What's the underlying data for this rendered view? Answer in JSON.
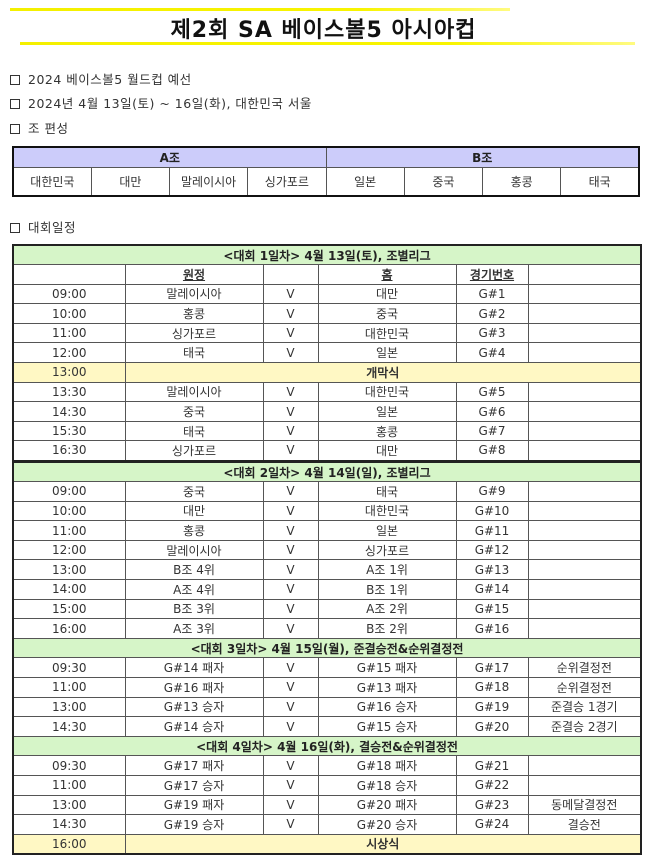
{
  "title": "제2회 SA 베이스볼5 아시아컵",
  "bullets": [
    "2024 베이스볼5 월드컵 예선",
    "2024년 4월 13일(토) ~ 16일(화), 대한민국 서울",
    "조 편성",
    "대회일정"
  ],
  "groups": {
    "a_label": "A조",
    "b_label": "B조",
    "a_teams": [
      "대한민국",
      "대만",
      "말레이시아",
      "싱가포르"
    ],
    "b_teams": [
      "일본",
      "중국",
      "홍콩",
      "태국"
    ]
  },
  "columns": {
    "away": "원정",
    "home": "홈",
    "game_no": "경기번호"
  },
  "days": [
    {
      "header": "<대회 1일차> 4월 13일(토), 조별리그",
      "rows": [
        [
          "09:00",
          "말레이시아",
          "V",
          "대만",
          "G#1",
          ""
        ],
        [
          "10:00",
          "홍콩",
          "V",
          "중국",
          "G#2",
          ""
        ],
        [
          "11:00",
          "싱가포르",
          "V",
          "대한민국",
          "G#3",
          ""
        ],
        [
          "12:00",
          "태국",
          "V",
          "일본",
          "G#4",
          ""
        ],
        {
          "time": "13:00",
          "event": "개막식"
        },
        [
          "13:30",
          "말레이시아",
          "V",
          "대한민국",
          "G#5",
          ""
        ],
        [
          "14:30",
          "중국",
          "V",
          "일본",
          "G#6",
          ""
        ],
        [
          "15:30",
          "태국",
          "V",
          "홍콩",
          "G#7",
          ""
        ],
        [
          "16:30",
          "싱가포르",
          "V",
          "대만",
          "G#8",
          ""
        ]
      ]
    },
    {
      "header": "<대회 2일차> 4월 14일(일), 조별리그",
      "rows": [
        [
          "09:00",
          "중국",
          "V",
          "태국",
          "G#9",
          ""
        ],
        [
          "10:00",
          "대만",
          "V",
          "대한민국",
          "G#10",
          ""
        ],
        [
          "11:00",
          "홍콩",
          "V",
          "일본",
          "G#11",
          ""
        ],
        [
          "12:00",
          "말레이시아",
          "V",
          "싱가포르",
          "G#12",
          ""
        ],
        [
          "13:00",
          "B조 4위",
          "V",
          "A조 1위",
          "G#13",
          ""
        ],
        [
          "14:00",
          "A조 4위",
          "V",
          "B조 1위",
          "G#14",
          ""
        ],
        [
          "15:00",
          "B조 3위",
          "V",
          "A조 2위",
          "G#15",
          ""
        ],
        [
          "16:00",
          "A조 3위",
          "V",
          "B조 2위",
          "G#16",
          ""
        ]
      ]
    },
    {
      "header": "<대회 3일차> 4월 15일(월), 준결승전&순위결정전",
      "rows": [
        [
          "09:30",
          "G#14 패자",
          "V",
          "G#15 패자",
          "G#17",
          "순위결정전"
        ],
        [
          "11:00",
          "G#16 패자",
          "V",
          "G#13 패자",
          "G#18",
          "순위결정전"
        ],
        [
          "13:00",
          "G#13 승자",
          "V",
          "G#16 승자",
          "G#19",
          "준결승 1경기"
        ],
        [
          "14:30",
          "G#14 승자",
          "V",
          "G#15 승자",
          "G#20",
          "준결승 2경기"
        ]
      ]
    },
    {
      "header": "<대회 4일차> 4월 16일(화), 결승전&순위결정전",
      "rows": [
        [
          "09:30",
          "G#17 패자",
          "V",
          "G#18 패자",
          "G#21",
          ""
        ],
        [
          "11:00",
          "G#17 승자",
          "V",
          "G#18 승자",
          "G#22",
          ""
        ],
        [
          "13:00",
          "G#19 패자",
          "V",
          "G#20 패자",
          "G#23",
          "동메달결정전"
        ],
        [
          "14:30",
          "G#19 승자",
          "V",
          "G#20 승자",
          "G#24",
          "결승전"
        ],
        {
          "time": "16:00",
          "event": "시상식"
        }
      ]
    }
  ]
}
